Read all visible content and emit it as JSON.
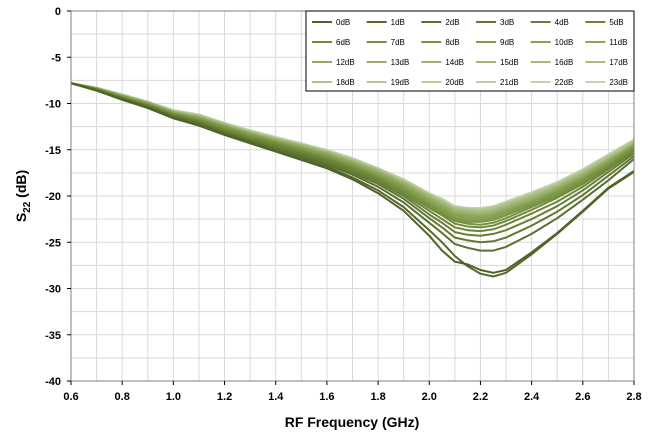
{
  "chart_data": {
    "type": "line",
    "xlabel": "RF Frequency (GHz)",
    "ylabel": {
      "main": "S",
      "sub": "22",
      "rest": " (dB)"
    },
    "xlim": [
      0.6,
      2.8
    ],
    "ylim": [
      -40,
      0
    ],
    "x_ticks": [
      "0.6",
      "0.8",
      "1.0",
      "1.2",
      "1.4",
      "1.6",
      "1.8",
      "2.0",
      "2.2",
      "2.4",
      "2.6",
      "2.8"
    ],
    "y_ticks": [
      "0",
      "-5",
      "-10",
      "-15",
      "-20",
      "-25",
      "-30",
      "-35",
      "-40"
    ],
    "grid": true,
    "legend_position": "top-right",
    "legend_columns": 6,
    "x": [
      0.6,
      0.7,
      0.8,
      0.9,
      1.0,
      1.1,
      1.2,
      1.3,
      1.4,
      1.5,
      1.6,
      1.7,
      1.8,
      1.9,
      2.0,
      2.05,
      2.1,
      2.15,
      2.2,
      2.25,
      2.3,
      2.4,
      2.5,
      2.6,
      2.7,
      2.8
    ],
    "series": [
      {
        "name": "0dB",
        "color": "#4f6228",
        "values": [
          -7.8,
          -8.6,
          -9.6,
          -10.5,
          -11.6,
          -12.4,
          -13.4,
          -14.3,
          -15.2,
          -16.1,
          -17.0,
          -18.2,
          -19.7,
          -21.6,
          -24.3,
          -25.9,
          -27.1,
          -27.4,
          -28.0,
          -28.3,
          -28.0,
          -26.1,
          -24.0,
          -21.6,
          -19.1,
          -17.3
        ]
      },
      {
        "name": "1dB",
        "color": "#546a2b",
        "values": [
          -7.8,
          -8.6,
          -9.5,
          -10.4,
          -11.5,
          -12.3,
          -13.3,
          -14.2,
          -15.1,
          -15.9,
          -16.8,
          -18.0,
          -19.4,
          -21.2,
          -23.7,
          -25.0,
          -26.5,
          -27.6,
          -28.4,
          -28.7,
          -28.3,
          -26.3,
          -24.1,
          -21.7,
          -19.2,
          -17.4
        ]
      },
      {
        "name": "2dB",
        "color": "#5a702f",
        "values": [
          -7.8,
          -8.6,
          -9.5,
          -10.4,
          -11.5,
          -12.2,
          -13.2,
          -14.1,
          -14.9,
          -15.7,
          -16.6,
          -17.7,
          -19.0,
          -20.7,
          -22.9,
          -24.0,
          -25.2,
          -25.6,
          -25.9,
          -25.9,
          -25.5,
          -24.1,
          -22.4,
          -20.4,
          -18.3,
          -16.0
        ]
      },
      {
        "name": "3dB",
        "color": "#607833",
        "values": [
          -7.8,
          -8.5,
          -9.5,
          -10.3,
          -11.4,
          -12.1,
          -13.1,
          -14.0,
          -14.8,
          -15.6,
          -16.4,
          -17.5,
          -18.7,
          -20.3,
          -22.4,
          -23.4,
          -24.5,
          -24.8,
          -25.0,
          -24.9,
          -24.5,
          -23.2,
          -21.7,
          -19.9,
          -17.8,
          -15.7
        ]
      },
      {
        "name": "4dB",
        "color": "#667f36",
        "values": [
          -7.8,
          -8.5,
          -9.4,
          -10.3,
          -11.3,
          -12.0,
          -13.0,
          -13.9,
          -14.6,
          -15.4,
          -16.2,
          -17.3,
          -18.5,
          -20.0,
          -22.0,
          -22.9,
          -23.9,
          -24.2,
          -24.3,
          -24.1,
          -23.7,
          -22.5,
          -21.1,
          -19.4,
          -17.4,
          -15.4
        ]
      },
      {
        "name": "5dB",
        "color": "#6c853a",
        "values": [
          -7.8,
          -8.5,
          -9.4,
          -10.2,
          -11.3,
          -11.9,
          -12.9,
          -13.8,
          -14.5,
          -15.3,
          -16.1,
          -17.1,
          -18.3,
          -19.8,
          -21.6,
          -22.5,
          -23.4,
          -23.7,
          -23.8,
          -23.6,
          -23.1,
          -21.9,
          -20.6,
          -19.0,
          -17.1,
          -15.2
        ]
      },
      {
        "name": "6dB",
        "color": "#718b3d",
        "values": [
          -7.8,
          -8.5,
          -9.4,
          -10.2,
          -11.2,
          -11.9,
          -12.8,
          -13.7,
          -14.4,
          -15.2,
          -16.0,
          -17.0,
          -18.1,
          -19.6,
          -21.3,
          -22.1,
          -23.0,
          -23.3,
          -23.4,
          -23.2,
          -22.7,
          -21.5,
          -20.2,
          -18.7,
          -16.9,
          -15.0
        ]
      },
      {
        "name": "7dB",
        "color": "#769141",
        "values": [
          -7.8,
          -8.4,
          -9.3,
          -10.1,
          -11.2,
          -11.8,
          -12.7,
          -13.6,
          -14.3,
          -15.1,
          -15.9,
          -16.9,
          -18.0,
          -19.4,
          -21.1,
          -21.9,
          -22.7,
          -23.0,
          -23.1,
          -22.9,
          -22.4,
          -21.2,
          -20.0,
          -18.5,
          -16.7,
          -14.9
        ]
      },
      {
        "name": "8dB",
        "color": "#7b9746",
        "values": [
          -7.8,
          -8.4,
          -9.3,
          -10.1,
          -11.1,
          -11.7,
          -12.6,
          -13.5,
          -14.2,
          -15.0,
          -15.8,
          -16.8,
          -17.9,
          -19.3,
          -20.9,
          -21.7,
          -22.5,
          -22.8,
          -22.8,
          -22.6,
          -22.1,
          -21.0,
          -19.8,
          -18.3,
          -16.6,
          -14.8
        ]
      },
      {
        "name": "9dB",
        "color": "#819c4c",
        "values": [
          -7.8,
          -8.4,
          -9.3,
          -10.1,
          -11.1,
          -11.7,
          -12.6,
          -13.4,
          -14.2,
          -14.9,
          -15.7,
          -16.7,
          -17.8,
          -19.1,
          -20.8,
          -21.5,
          -22.3,
          -22.6,
          -22.6,
          -22.4,
          -21.9,
          -20.8,
          -19.6,
          -18.2,
          -16.5,
          -14.7
        ]
      },
      {
        "name": "10dB",
        "color": "#86a152",
        "values": [
          -7.8,
          -8.4,
          -9.2,
          -10.0,
          -11.0,
          -11.6,
          -12.5,
          -13.4,
          -14.1,
          -14.8,
          -15.6,
          -16.6,
          -17.7,
          -19.0,
          -20.6,
          -21.4,
          -22.1,
          -22.4,
          -22.4,
          -22.2,
          -21.7,
          -20.7,
          -19.5,
          -18.1,
          -16.4,
          -14.6
        ]
      },
      {
        "name": "11dB",
        "color": "#8ca659",
        "values": [
          -7.8,
          -8.4,
          -9.2,
          -10.0,
          -11.0,
          -11.6,
          -12.5,
          -13.3,
          -14.1,
          -14.8,
          -15.5,
          -16.5,
          -17.6,
          -18.9,
          -20.5,
          -21.2,
          -22.0,
          -22.2,
          -22.3,
          -22.1,
          -21.6,
          -20.6,
          -19.4,
          -18.0,
          -16.3,
          -14.6
        ]
      },
      {
        "name": "12dB",
        "color": "#91aa60",
        "values": [
          -7.8,
          -8.4,
          -9.2,
          -10.0,
          -11.0,
          -11.5,
          -12.4,
          -13.3,
          -14.0,
          -14.7,
          -15.5,
          -16.4,
          -17.5,
          -18.8,
          -20.4,
          -21.1,
          -21.9,
          -22.1,
          -22.2,
          -22.0,
          -21.5,
          -20.5,
          -19.3,
          -17.9,
          -16.2,
          -14.5
        ]
      },
      {
        "name": "13dB",
        "color": "#96ae67",
        "values": [
          -7.8,
          -8.4,
          -9.2,
          -10.0,
          -11.0,
          -11.5,
          -12.4,
          -13.2,
          -14.0,
          -14.7,
          -15.4,
          -16.4,
          -17.4,
          -18.7,
          -20.3,
          -21.0,
          -21.8,
          -22.0,
          -22.1,
          -21.9,
          -21.4,
          -20.4,
          -19.2,
          -17.8,
          -16.2,
          -14.5
        ]
      },
      {
        "name": "14dB",
        "color": "#9bb26e",
        "values": [
          -7.8,
          -8.4,
          -9.2,
          -9.9,
          -10.9,
          -11.5,
          -12.4,
          -13.2,
          -13.9,
          -14.6,
          -15.4,
          -16.3,
          -17.4,
          -18.7,
          -20.2,
          -20.9,
          -21.7,
          -21.9,
          -22.0,
          -21.8,
          -21.3,
          -20.3,
          -19.1,
          -17.7,
          -16.1,
          -14.4
        ]
      },
      {
        "name": "15dB",
        "color": "#a0b675",
        "values": [
          -7.8,
          -8.3,
          -9.2,
          -9.9,
          -10.9,
          -11.4,
          -12.3,
          -13.2,
          -13.9,
          -14.6,
          -15.3,
          -16.3,
          -17.3,
          -18.6,
          -20.1,
          -20.8,
          -21.6,
          -21.8,
          -21.9,
          -21.7,
          -21.2,
          -20.2,
          -19.0,
          -17.7,
          -16.0,
          -14.4
        ]
      },
      {
        "name": "16dB",
        "color": "#a5ba7c",
        "values": [
          -7.8,
          -8.3,
          -9.1,
          -9.9,
          -10.9,
          -11.4,
          -12.3,
          -13.1,
          -13.9,
          -14.5,
          -15.3,
          -16.2,
          -17.3,
          -18.5,
          -20.0,
          -20.7,
          -21.5,
          -21.7,
          -21.8,
          -21.6,
          -21.1,
          -20.1,
          -19.0,
          -17.6,
          -16.0,
          -14.3
        ]
      },
      {
        "name": "17dB",
        "color": "#aabe83",
        "values": [
          -7.8,
          -8.3,
          -9.1,
          -9.9,
          -10.9,
          -11.4,
          -12.3,
          -13.1,
          -13.8,
          -14.5,
          -15.2,
          -16.2,
          -17.2,
          -18.5,
          -20.0,
          -20.7,
          -21.4,
          -21.6,
          -21.7,
          -21.5,
          -21.0,
          -20.0,
          -18.9,
          -17.5,
          -15.9,
          -14.2
        ]
      },
      {
        "name": "18dB",
        "color": "#afc28a",
        "values": [
          -7.8,
          -8.3,
          -9.1,
          -9.9,
          -10.8,
          -11.3,
          -12.2,
          -13.1,
          -13.8,
          -14.5,
          -15.2,
          -16.1,
          -17.2,
          -18.4,
          -19.9,
          -20.6,
          -21.4,
          -21.5,
          -21.6,
          -21.4,
          -20.9,
          -19.9,
          -18.8,
          -17.4,
          -15.8,
          -14.2
        ]
      },
      {
        "name": "19dB",
        "color": "#b4c692",
        "values": [
          -7.8,
          -8.3,
          -9.1,
          -9.8,
          -10.8,
          -11.3,
          -12.2,
          -13.0,
          -13.8,
          -14.4,
          -15.2,
          -16.1,
          -17.1,
          -18.4,
          -19.9,
          -20.5,
          -21.3,
          -21.5,
          -21.5,
          -21.3,
          -20.8,
          -19.8,
          -18.7,
          -17.3,
          -15.7,
          -14.1
        ]
      },
      {
        "name": "20dB",
        "color": "#b9ca99",
        "values": [
          -7.8,
          -8.3,
          -9.1,
          -9.8,
          -10.8,
          -11.3,
          -12.2,
          -13.0,
          -13.7,
          -14.4,
          -15.1,
          -16.0,
          -17.1,
          -18.3,
          -19.8,
          -20.5,
          -21.2,
          -21.4,
          -21.5,
          -21.3,
          -20.8,
          -19.8,
          -18.7,
          -17.3,
          -15.7,
          -14.0
        ]
      },
      {
        "name": "21dB",
        "color": "#bdcea0",
        "values": [
          -7.8,
          -8.3,
          -9.1,
          -9.8,
          -10.8,
          -11.3,
          -12.2,
          -13.0,
          -13.7,
          -14.4,
          -15.1,
          -16.0,
          -17.0,
          -18.3,
          -19.8,
          -20.4,
          -21.2,
          -21.4,
          -21.4,
          -21.2,
          -20.7,
          -19.7,
          -18.6,
          -17.2,
          -15.6,
          -14.0
        ]
      },
      {
        "name": "22dB",
        "color": "#c2d2a8",
        "values": [
          -7.8,
          -8.3,
          -9.0,
          -9.8,
          -10.8,
          -11.2,
          -12.1,
          -12.9,
          -13.7,
          -14.3,
          -15.1,
          -16.0,
          -17.0,
          -18.2,
          -19.7,
          -20.4,
          -21.1,
          -21.3,
          -21.4,
          -21.2,
          -20.7,
          -19.7,
          -18.6,
          -17.2,
          -15.6,
          -13.9
        ]
      },
      {
        "name": "23dB",
        "color": "#c7d6b0",
        "values": [
          -7.8,
          -8.3,
          -9.0,
          -9.8,
          -10.7,
          -11.2,
          -12.1,
          -12.9,
          -13.6,
          -14.3,
          -15.0,
          -15.9,
          -17.0,
          -18.2,
          -19.7,
          -20.3,
          -21.1,
          -21.3,
          -21.3,
          -21.1,
          -20.6,
          -19.6,
          -18.5,
          -17.1,
          -15.5,
          -13.9
        ]
      }
    ]
  }
}
